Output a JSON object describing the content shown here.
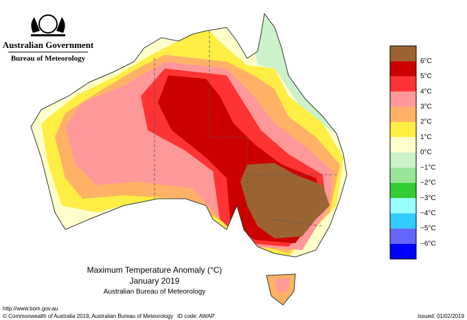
{
  "header": {
    "government": "Australian Government",
    "bureau": "Bureau of Meteorology"
  },
  "title": {
    "line1": "Maximum Temperature Anomaly (°C)",
    "line2": "January 2019",
    "line3": "Australian Bureau of Meteorology"
  },
  "legend": {
    "labels": [
      "6°C",
      "5°C",
      "4°C",
      "3°C",
      "2°C",
      "1°C",
      "0°C",
      "−1°C",
      "−2°C",
      "−3°C",
      "−4°C",
      "−5°C",
      "−6°C"
    ],
    "colors": [
      "#9c6433",
      "#cc0000",
      "#ff3333",
      "#ff9999",
      "#ffb266",
      "#ffee44",
      "#ffffcc",
      "#ccf2cc",
      "#99e699",
      "#33cc33",
      "#99ffff",
      "#33ccff",
      "#6666ff",
      "#0000ff"
    ]
  },
  "footer": {
    "url": "http://www.bom.gov.au",
    "copyright": "© Commonwealth of Australia 2019, Australian Bureau of Meteorology",
    "id_code": "ID code: AWAP",
    "issued": "Issued: 01/02/2019"
  }
}
